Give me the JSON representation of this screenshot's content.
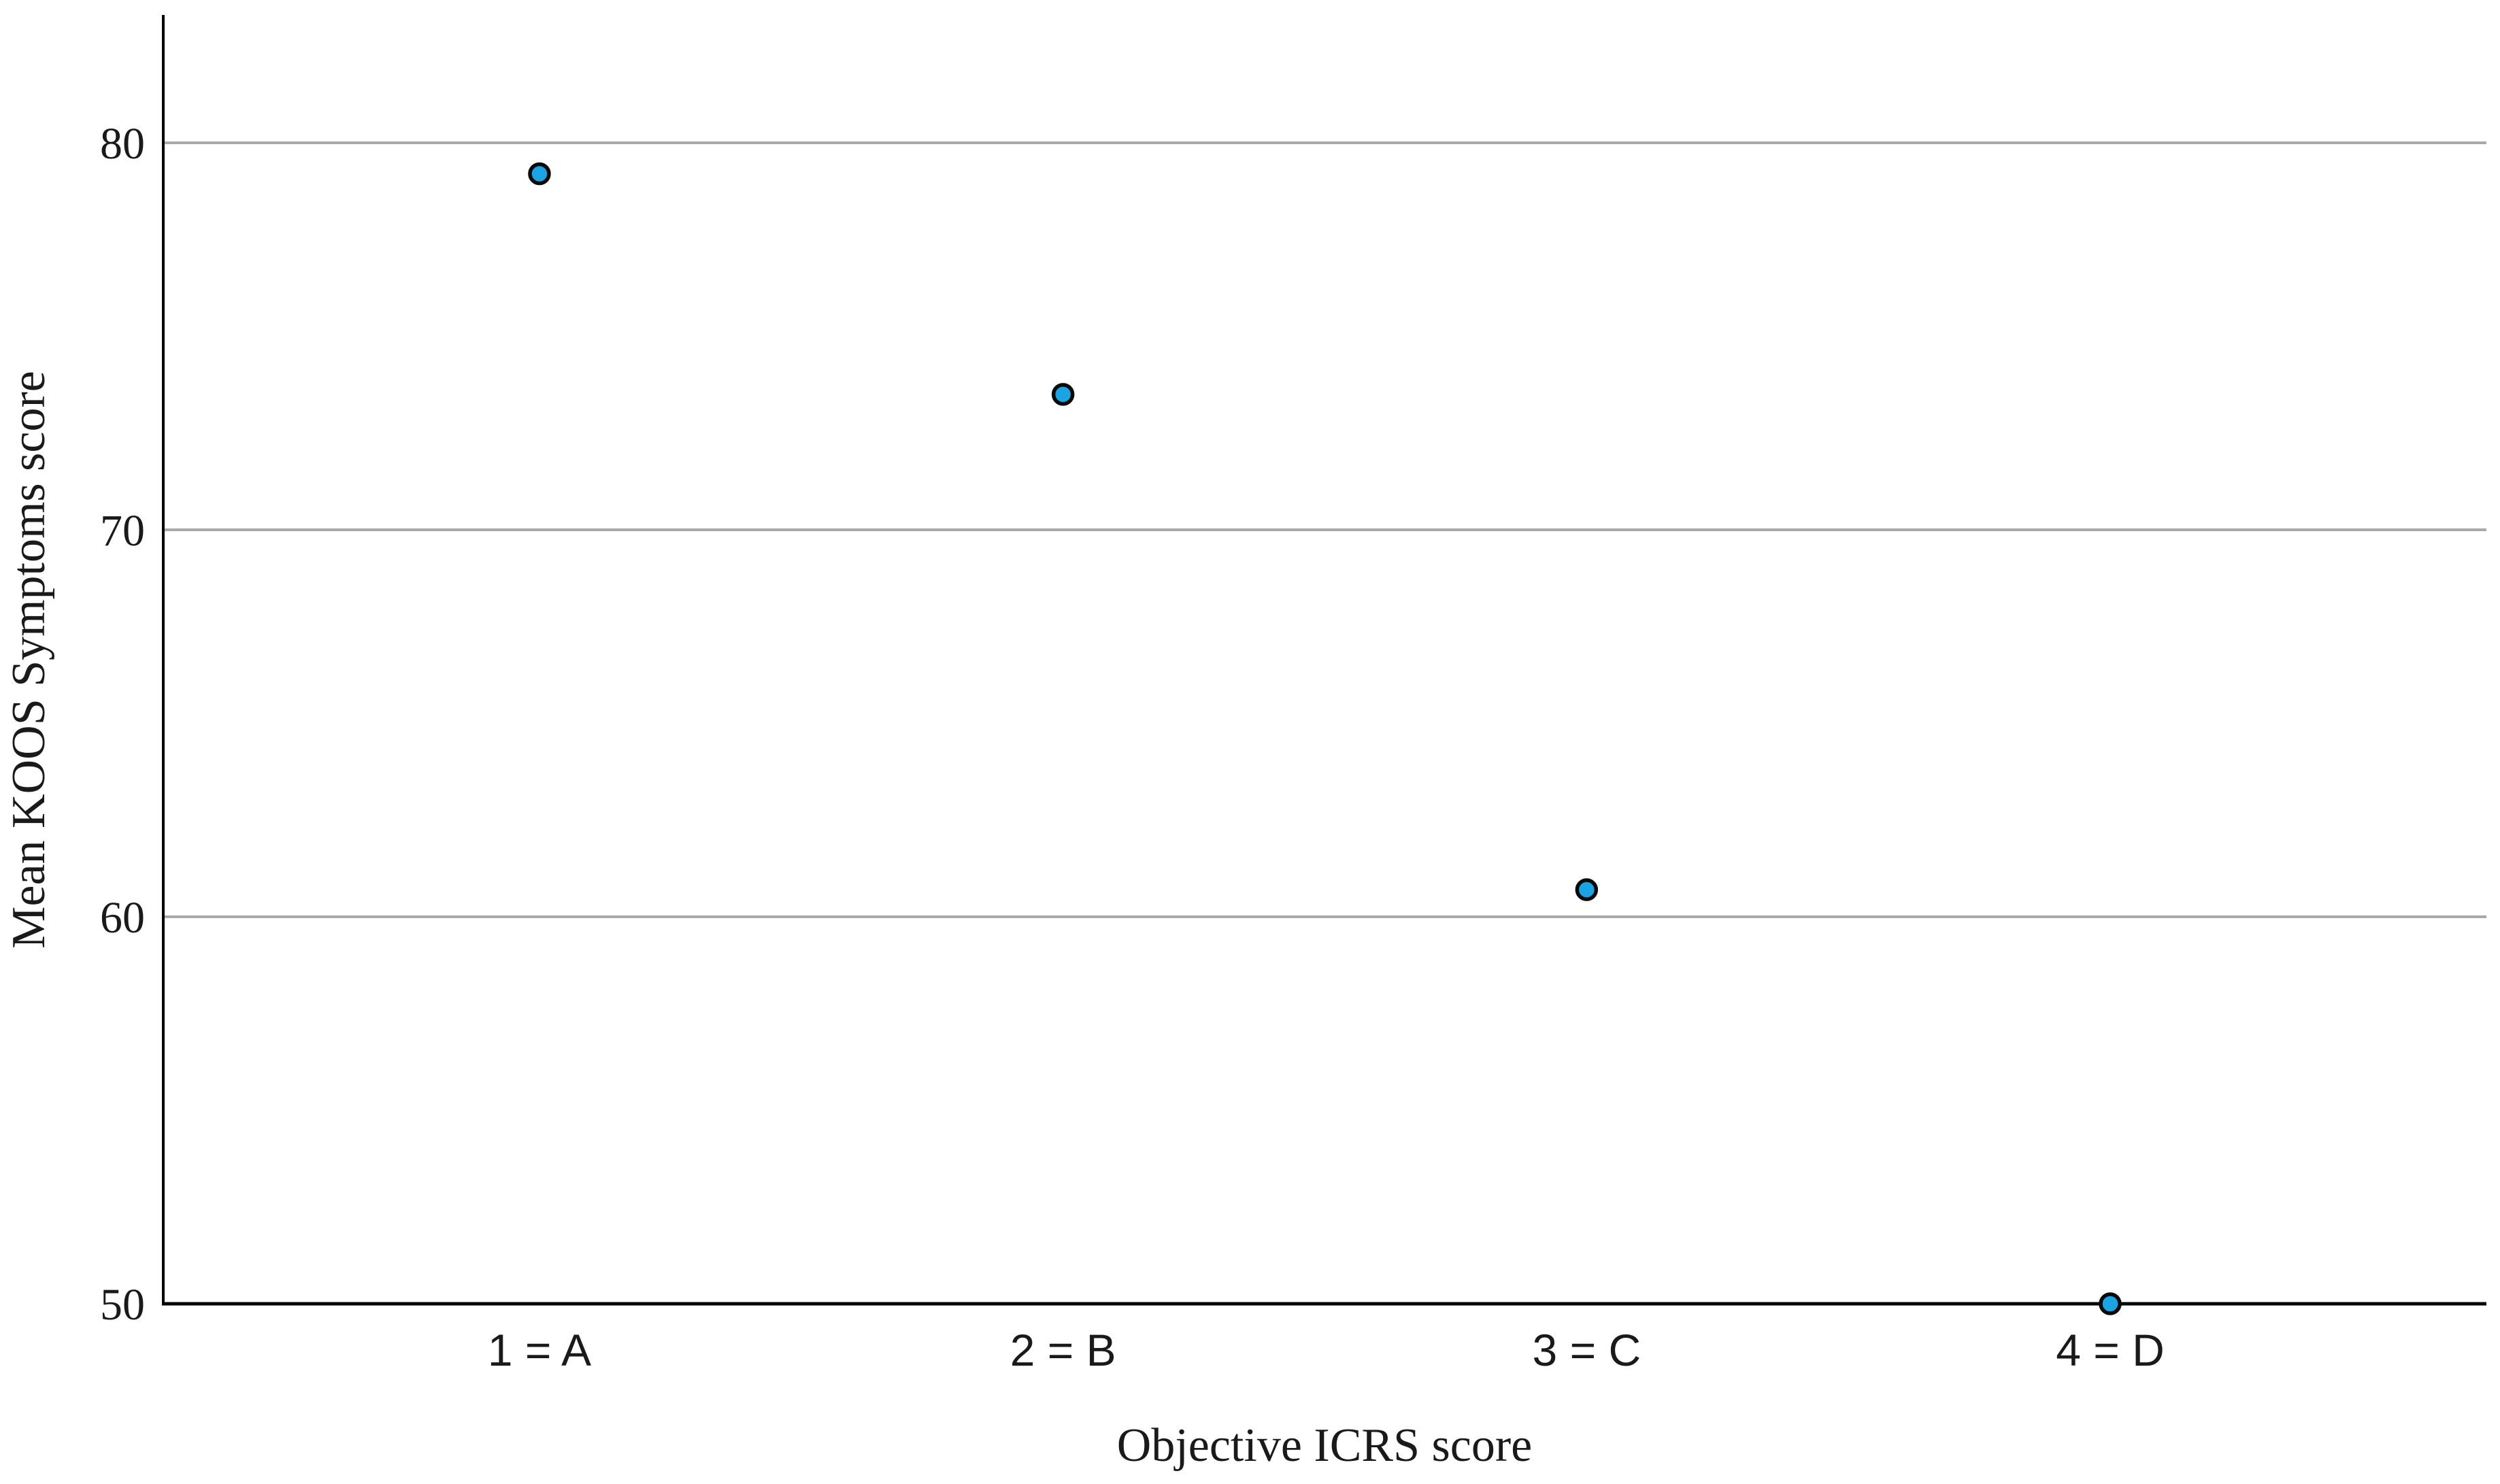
{
  "chart_data": {
    "type": "scatter",
    "title": "",
    "xlabel": "Objective ICRS score",
    "ylabel": "Mean KOOS Symptoms score",
    "categories": [
      "1 = A",
      "2 = B",
      "3 = C",
      "4 = D"
    ],
    "series": [
      {
        "name": "Mean KOOS Symptoms score",
        "values": [
          79.2,
          73.5,
          60.7,
          50.0
        ]
      }
    ],
    "yticks": [
      50,
      60,
      70,
      80
    ],
    "ylim": [
      50,
      83.3
    ],
    "xlim_categories": [
      1,
      4
    ],
    "grid": "horizontal-only, no gridline at 50 (baseline)",
    "legend_position": "none",
    "colors": {
      "point_fill": "#1BA4E4",
      "point_border": "#0a0a0a",
      "gridline": "#A9A9A9",
      "axis_line": "#000000",
      "label_text": "#1a1a1a",
      "background": "#ffffff"
    }
  }
}
